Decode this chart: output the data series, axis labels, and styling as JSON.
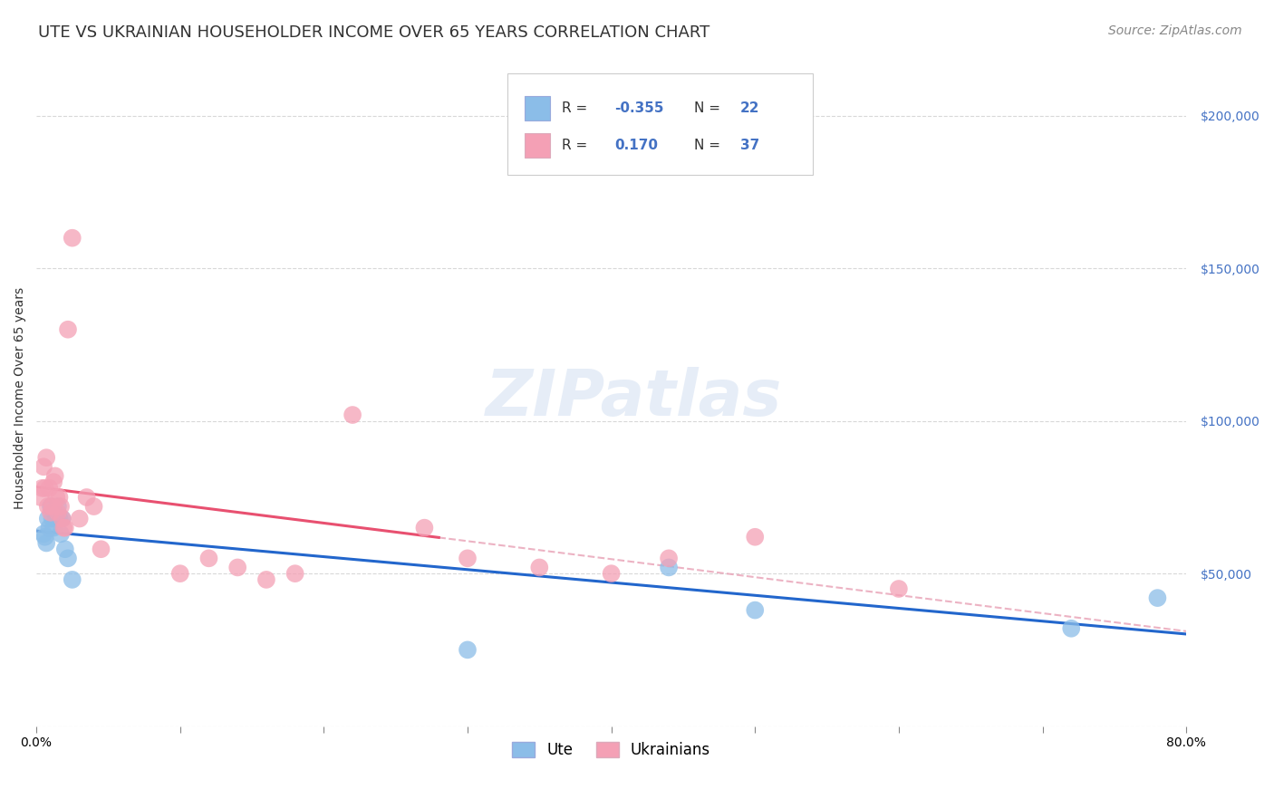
{
  "title": "UTE VS UKRAINIAN HOUSEHOLDER INCOME OVER 65 YEARS CORRELATION CHART",
  "source": "Source: ZipAtlas.com",
  "ylabel": "Householder Income Over 65 years",
  "ute_R": -0.355,
  "ute_N": 22,
  "ukr_R": 0.17,
  "ukr_N": 37,
  "ute_color": "#8bbde8",
  "ukr_color": "#f4a0b5",
  "ute_line_color": "#2266cc",
  "ukr_line_color": "#e85070",
  "ukr_dash_color": "#e8a0b5",
  "watermark_text": "ZIPatlas",
  "legend_label_ute": "Ute",
  "legend_label_ukr": "Ukrainians",
  "ute_x": [
    0.005,
    0.006,
    0.007,
    0.008,
    0.009,
    0.01,
    0.011,
    0.012,
    0.013,
    0.014,
    0.015,
    0.016,
    0.017,
    0.018,
    0.02,
    0.022,
    0.025,
    0.3,
    0.44,
    0.5,
    0.72,
    0.78
  ],
  "ute_y": [
    63000,
    62000,
    60000,
    68000,
    65000,
    72000,
    68000,
    65000,
    70000,
    68000,
    72000,
    68000,
    63000,
    68000,
    58000,
    55000,
    48000,
    25000,
    52000,
    38000,
    32000,
    42000
  ],
  "ukr_x": [
    0.003,
    0.004,
    0.005,
    0.006,
    0.007,
    0.008,
    0.009,
    0.01,
    0.011,
    0.012,
    0.013,
    0.014,
    0.015,
    0.016,
    0.017,
    0.018,
    0.019,
    0.02,
    0.022,
    0.025,
    0.03,
    0.035,
    0.04,
    0.045,
    0.1,
    0.12,
    0.14,
    0.16,
    0.18,
    0.22,
    0.27,
    0.3,
    0.35,
    0.4,
    0.44,
    0.5,
    0.6
  ],
  "ukr_y": [
    75000,
    78000,
    85000,
    78000,
    88000,
    72000,
    78000,
    70000,
    72000,
    80000,
    82000,
    75000,
    70000,
    75000,
    72000,
    68000,
    65000,
    65000,
    130000,
    160000,
    68000,
    75000,
    72000,
    58000,
    50000,
    55000,
    52000,
    48000,
    50000,
    102000,
    65000,
    55000,
    52000,
    50000,
    55000,
    62000,
    45000
  ],
  "xlim": [
    0.0,
    0.8
  ],
  "ylim": [
    0,
    215000
  ],
  "ytick_values": [
    0,
    50000,
    100000,
    150000,
    200000
  ],
  "background_color": "#ffffff",
  "grid_color": "#d8d8d8",
  "title_fontsize": 13,
  "axis_label_fontsize": 10,
  "tick_fontsize": 10,
  "source_fontsize": 10
}
